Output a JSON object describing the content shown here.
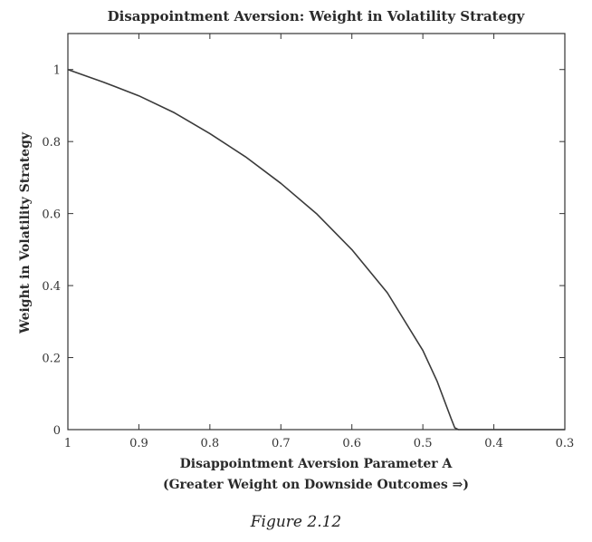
{
  "chart_data": {
    "type": "line",
    "title": "Disappointment Aversion: Weight in Volatility Strategy",
    "xlabel": "Disappointment Aversion Parameter A",
    "xlabel_note": "(Greater Weight on Downside Outcomes ⇒)",
    "ylabel": "Weight in Volatility Strategy",
    "xlim": [
      1,
      0.3
    ],
    "ylim": [
      0,
      1.1
    ],
    "x_reversed": true,
    "xticks": [
      1,
      0.9,
      0.8,
      0.7,
      0.6,
      0.5,
      0.4,
      0.3
    ],
    "xtick_labels": [
      "1",
      "0.9",
      "0.8",
      "0.7",
      "0.6",
      "0.5",
      "0.4",
      "0.3"
    ],
    "yticks": [
      0,
      0.2,
      0.4,
      0.6,
      0.8,
      1
    ],
    "ytick_labels": [
      "0",
      "0.2",
      "0.4",
      "0.6",
      "0.8",
      "1"
    ],
    "grid": false,
    "series": [
      {
        "color": "#3a3a3a",
        "x": [
          1,
          0.95,
          0.9,
          0.85,
          0.8,
          0.75,
          0.7,
          0.65,
          0.6,
          0.55,
          0.5,
          0.48,
          0.46,
          0.455,
          0.45,
          0.4,
          0.35,
          0.3
        ],
        "y": [
          1,
          0.965,
          0.927,
          0.88,
          0.822,
          0.758,
          0.684,
          0.6,
          0.5,
          0.38,
          0.22,
          0.135,
          0.03,
          0.005,
          0,
          0,
          0,
          0
        ]
      }
    ]
  },
  "caption": "Figure 2.12"
}
